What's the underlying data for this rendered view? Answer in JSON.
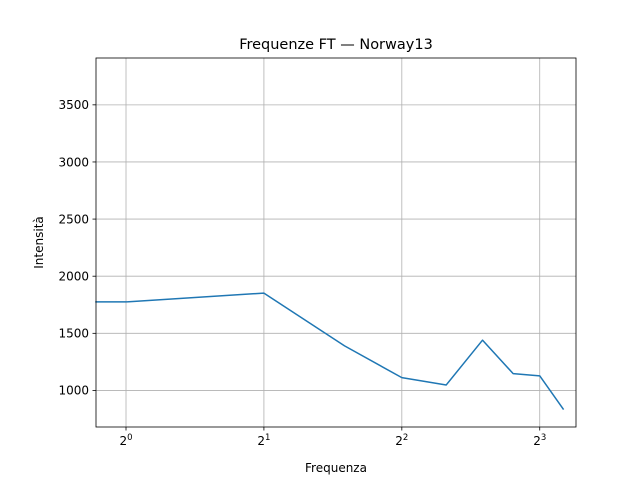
{
  "chart_data": {
    "type": "line",
    "title": "Frequenze FT — Norway13",
    "xlabel": "Frequenza",
    "ylabel": "Intensità",
    "xscale": "log2",
    "xlim": [
      0.86,
      9.6
    ],
    "ylim": [
      680,
      3910
    ],
    "xticks": [
      {
        "value": 1,
        "base": "2",
        "exp": "0"
      },
      {
        "value": 2,
        "base": "2",
        "exp": "1"
      },
      {
        "value": 4,
        "base": "2",
        "exp": "2"
      },
      {
        "value": 8,
        "base": "2",
        "exp": "3"
      }
    ],
    "yticks": [
      1000,
      1500,
      2000,
      2500,
      3000,
      3500
    ],
    "grid": true,
    "series": [
      {
        "color": "#1f77b4",
        "x": [
          0.86,
          1.0,
          2.0,
          3.0,
          4.0,
          5.0,
          6.0,
          7.0,
          8.0,
          9.0
        ],
        "y": [
          1775,
          1775,
          1852,
          1390,
          1112,
          1048,
          1440,
          1147,
          1128,
          838
        ]
      }
    ]
  }
}
